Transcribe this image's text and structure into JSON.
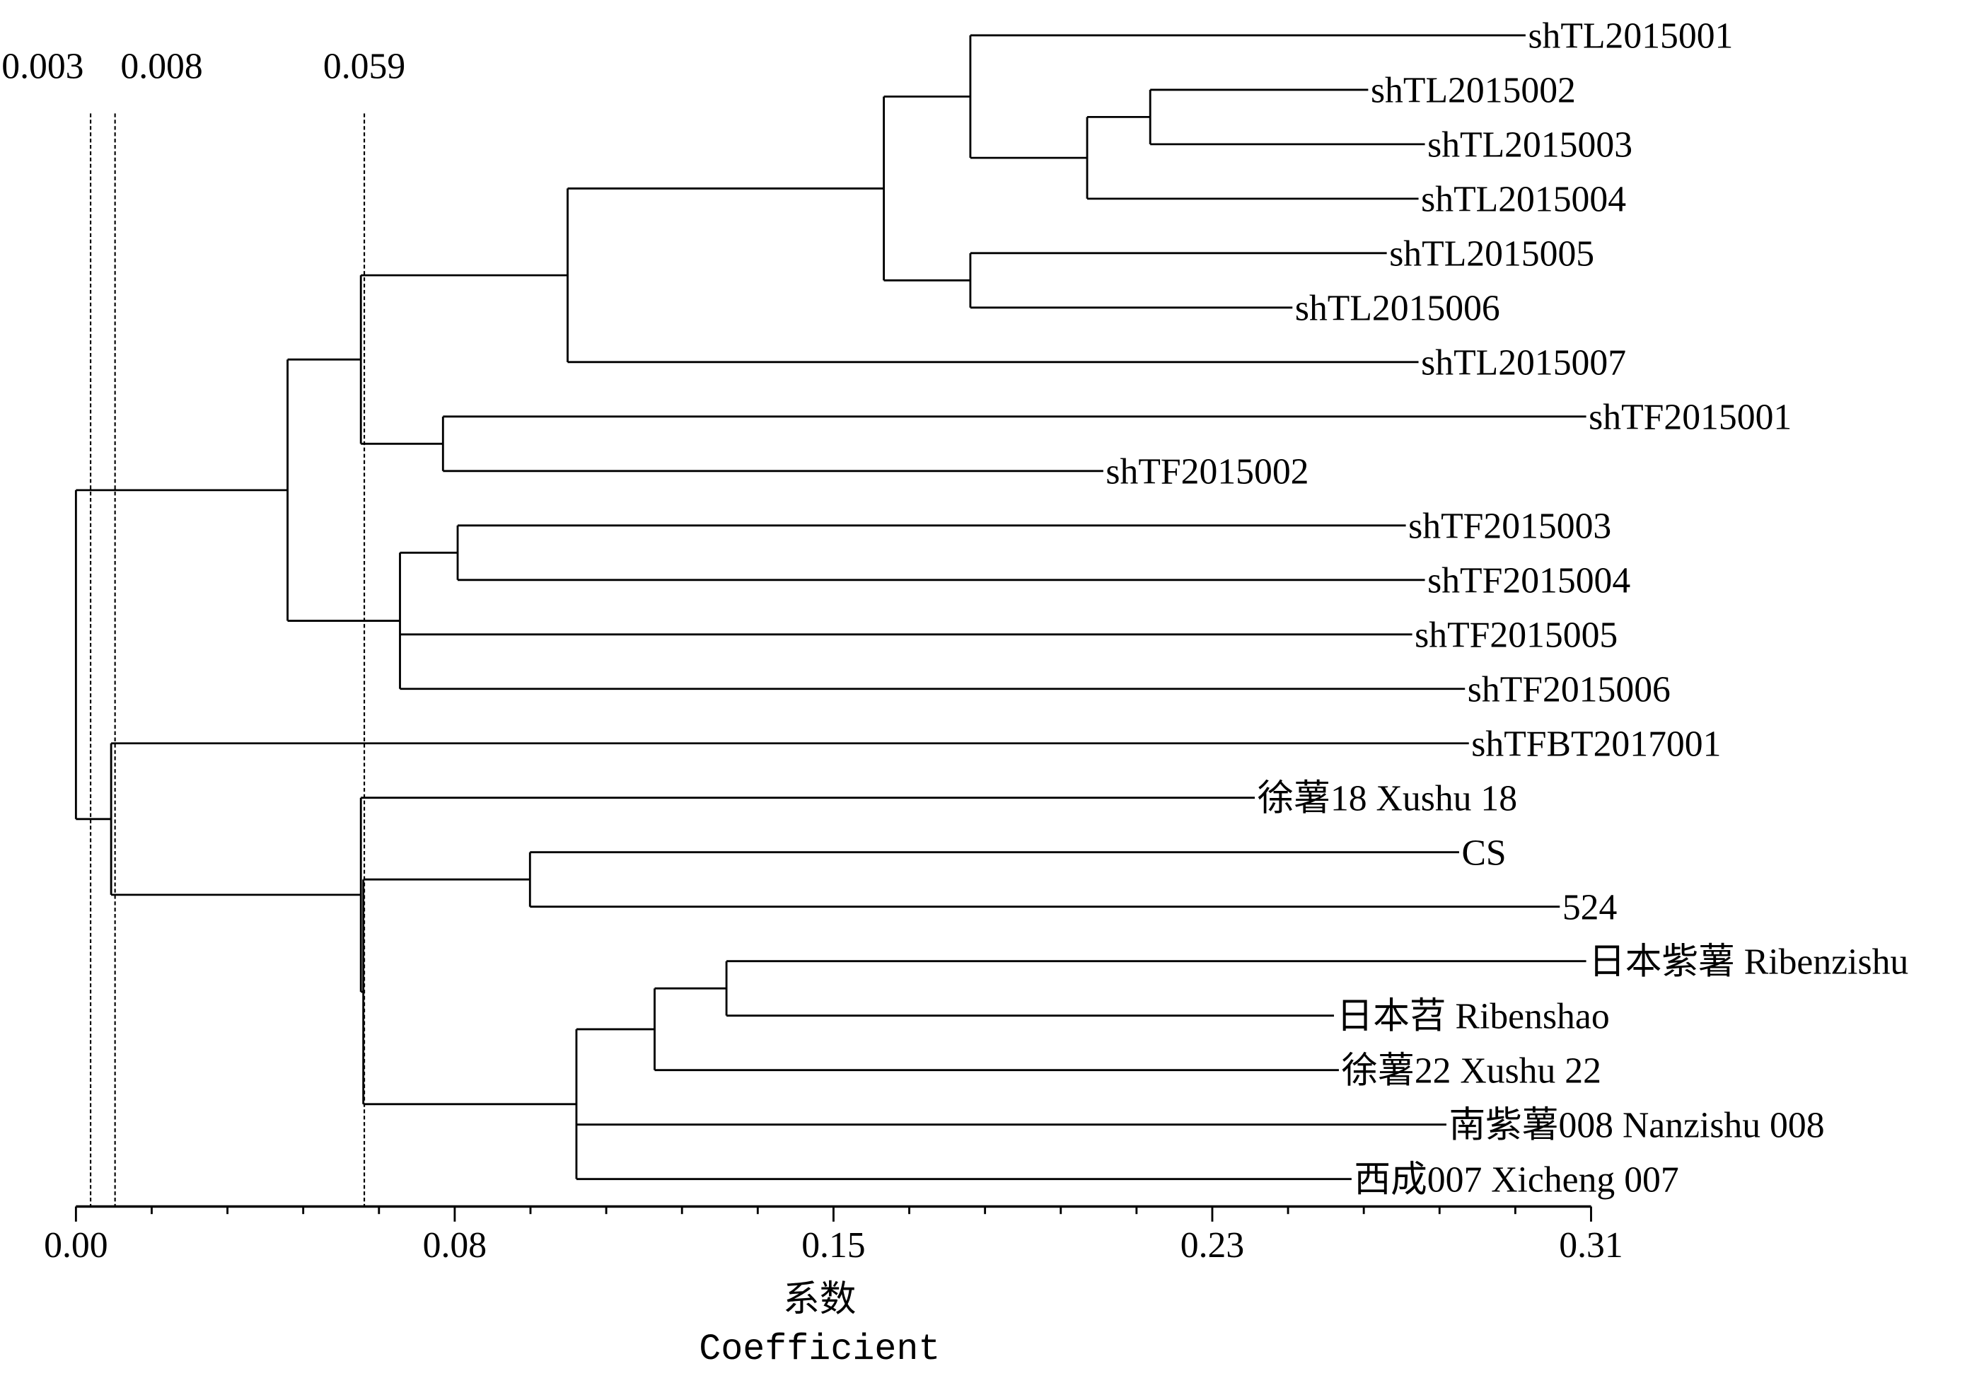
{
  "chart_data": {
    "type": "dendrogram",
    "xlabel_cn": "系数",
    "xlabel_en": "Coefficient",
    "xlim": [
      0.0,
      0.31
    ],
    "x_ticks": [
      0.0,
      0.0775,
      0.155,
      0.2325,
      0.31
    ],
    "x_tick_labels": [
      "0.00",
      "0.08",
      "0.15",
      "0.23",
      "0.31"
    ],
    "minor_ticks_per_interval": 4,
    "cut_lines": [
      {
        "value": 0.003,
        "label": "0.003"
      },
      {
        "value": 0.008,
        "label": "0.008"
      },
      {
        "value": 0.059,
        "label": "0.059"
      }
    ],
    "leaves": [
      {
        "name": "shTL2015001",
        "extent": 0.2966
      },
      {
        "name": "shTL2015002",
        "extent": 0.2644
      },
      {
        "name": "shTL2015003",
        "extent": 0.276
      },
      {
        "name": "shTL2015004",
        "extent": 0.2747
      },
      {
        "name": "shTL2015005",
        "extent": 0.2682
      },
      {
        "name": "shTL2015006",
        "extent": 0.2489
      },
      {
        "name": "shTL2015007",
        "extent": 0.2747
      },
      {
        "name": "shTF2015001",
        "extent": 0.309
      },
      {
        "name": "shTF2015002",
        "extent": 0.2102
      },
      {
        "name": "shTF2015003",
        "extent": 0.2721
      },
      {
        "name": "shTF2015004",
        "extent": 0.276
      },
      {
        "name": "shTF2015005",
        "extent": 0.2734
      },
      {
        "name": "shTF2015006",
        "extent": 0.2842
      },
      {
        "name": "shTFBT2017001",
        "extent": 0.285
      },
      {
        "name": "徐薯18 Xushu 18",
        "extent": 0.2412
      },
      {
        "name": "CS",
        "extent": 0.283
      },
      {
        "name": "524",
        "extent": 0.3036
      },
      {
        "name": "日本紫薯 Ribenzishu",
        "extent": 0.309
      },
      {
        "name": "日本苕 Ribenshao",
        "extent": 0.2574
      },
      {
        "name": "徐薯22 Xushu 22",
        "extent": 0.2584
      },
      {
        "name": "南紫薯008 Nanzishu 008",
        "extent": 0.2804
      },
      {
        "name": "西成007 Xicheng 007",
        "extent": 0.261
      }
    ],
    "merges": [
      {
        "id": "n0",
        "height": 0.2198,
        "children": [
          "L1",
          "L2"
        ]
      },
      {
        "id": "n1",
        "height": 0.2069,
        "children": [
          "n0",
          "L3"
        ]
      },
      {
        "id": "n2",
        "height": 0.183,
        "children": [
          "L0",
          "n1"
        ]
      },
      {
        "id": "n3",
        "height": 0.183,
        "children": [
          "L4",
          "L5"
        ]
      },
      {
        "id": "n4",
        "height": 0.1653,
        "children": [
          "n2",
          "n3"
        ]
      },
      {
        "id": "n5",
        "height": 0.1006,
        "children": [
          "n4",
          "L6"
        ]
      },
      {
        "id": "n6",
        "height": 0.0751,
        "children": [
          "L7",
          "L8"
        ]
      },
      {
        "id": "n7",
        "height": 0.0583,
        "children": [
          "n5",
          "n6"
        ]
      },
      {
        "id": "n8",
        "height": 0.0781,
        "children": [
          "L9",
          "L10"
        ]
      },
      {
        "id": "n9",
        "height": 0.0663,
        "children": [
          "n8",
          "L11",
          "L12"
        ]
      },
      {
        "id": "n10",
        "height": 0.0433,
        "children": [
          "n7",
          "n9"
        ]
      },
      {
        "id": "n11",
        "height": 0.0929,
        "children": [
          "L15",
          "L16"
        ]
      },
      {
        "id": "n12",
        "height": 0.1331,
        "children": [
          "L17",
          "L18"
        ]
      },
      {
        "id": "n13",
        "height": 0.1184,
        "children": [
          "n12",
          "L19"
        ]
      },
      {
        "id": "n14",
        "height": 0.1024,
        "children": [
          "n13",
          "L20",
          "L21"
        ]
      },
      {
        "id": "n15",
        "height": 0.0588,
        "children": [
          "n11",
          "n14"
        ]
      },
      {
        "id": "n16",
        "height": 0.0583,
        "children": [
          "L14",
          "n15"
        ]
      },
      {
        "id": "n17",
        "height": 0.0072,
        "children": [
          "L13",
          "n16"
        ]
      },
      {
        "id": "n18",
        "height": 0.0,
        "children": [
          "n10",
          "n17"
        ]
      }
    ]
  }
}
